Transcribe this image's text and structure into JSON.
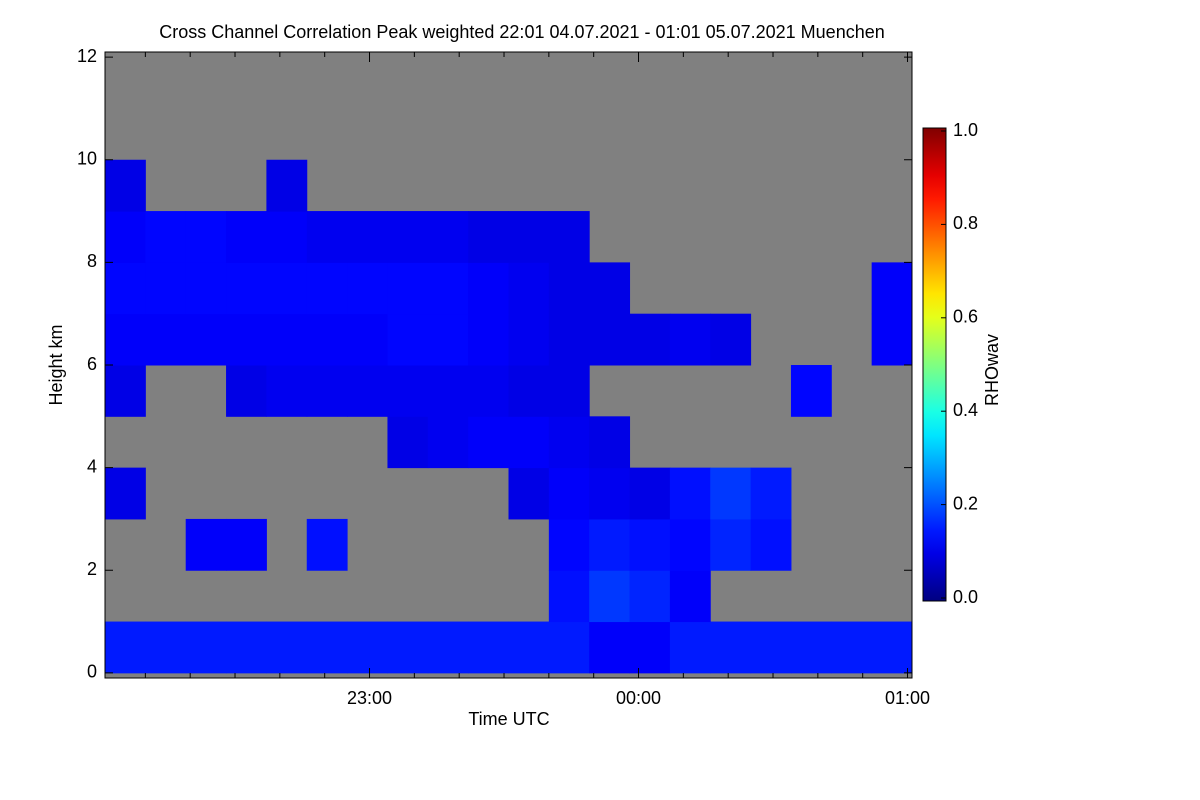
{
  "chart_data": {
    "type": "heatmap",
    "title": "Cross Channel Correlation Peak weighted   22:01 04.07.2021 - 01:01 05.07.2021 Muenchen",
    "xlabel": "Time UTC",
    "ylabel": "Height km",
    "colorbar_label": "RHOwav",
    "colormap": "jet",
    "nodata_color": "#808080",
    "xlim": [
      1,
      181
    ],
    "ylim": [
      -0.1,
      12.1
    ],
    "xticks": [
      {
        "value": 60,
        "label": "23:00"
      },
      {
        "value": 120,
        "label": "00:00"
      },
      {
        "value": 180,
        "label": "01:00"
      }
    ],
    "minor_xticks": [
      10,
      20,
      30,
      40,
      50,
      70,
      80,
      90,
      100,
      110,
      130,
      140,
      150,
      160,
      170
    ],
    "yticks": [
      0,
      2,
      4,
      6,
      8,
      10,
      12
    ],
    "zlim": [
      0,
      1
    ],
    "zticks": [
      {
        "value": 0,
        "label": "0.0"
      },
      {
        "value": 0.2,
        "label": "0.2"
      },
      {
        "value": 0.4,
        "label": "0.4"
      },
      {
        "value": 0.6,
        "label": "0.6"
      },
      {
        "value": 0.8,
        "label": "0.8"
      },
      {
        "value": 1,
        "label": "1.0"
      }
    ],
    "x_edges": [
      1,
      10,
      19,
      28,
      37,
      46,
      55,
      64,
      73,
      82,
      91,
      100,
      109,
      118,
      127,
      136,
      145,
      154,
      163,
      172,
      181
    ],
    "y_edges": [
      0,
      1,
      2,
      3,
      4,
      5,
      6,
      7,
      8,
      9,
      10,
      11,
      12
    ],
    "z": [
      [
        0.15,
        0.15,
        0.15,
        0.15,
        0.15,
        0.15,
        0.15,
        0.15,
        0.15,
        0.15,
        0.15,
        0.15,
        0.12,
        0.12,
        0.15,
        0.15,
        0.15,
        0.15,
        0.15,
        0.15
      ],
      [
        null,
        null,
        null,
        null,
        null,
        null,
        null,
        null,
        null,
        null,
        null,
        0.14,
        0.18,
        0.16,
        0.12,
        null,
        null,
        null,
        null,
        null
      ],
      [
        null,
        null,
        0.12,
        0.12,
        null,
        0.14,
        null,
        null,
        null,
        null,
        null,
        0.13,
        0.15,
        0.14,
        0.13,
        0.16,
        0.14,
        null,
        null,
        null
      ],
      [
        0.1,
        null,
        null,
        null,
        null,
        null,
        null,
        null,
        null,
        null,
        0.1,
        0.12,
        0.11,
        0.1,
        0.14,
        0.18,
        0.15,
        null,
        null,
        null
      ],
      [
        null,
        null,
        null,
        null,
        null,
        null,
        null,
        0.1,
        0.11,
        0.12,
        0.12,
        0.11,
        0.1,
        null,
        null,
        null,
        null,
        null,
        null,
        null
      ],
      [
        0.1,
        null,
        null,
        0.1,
        0.11,
        0.11,
        0.11,
        0.11,
        0.11,
        0.11,
        0.1,
        0.1,
        null,
        null,
        null,
        null,
        null,
        0.13,
        null,
        null
      ],
      [
        0.12,
        0.12,
        0.12,
        0.12,
        0.12,
        0.12,
        0.12,
        0.13,
        0.13,
        0.12,
        0.11,
        0.1,
        0.1,
        0.1,
        0.11,
        0.1,
        null,
        null,
        null,
        0.12
      ],
      [
        0.13,
        0.13,
        0.13,
        0.13,
        0.13,
        0.13,
        0.13,
        0.13,
        0.13,
        0.12,
        0.11,
        0.1,
        0.1,
        null,
        null,
        null,
        null,
        null,
        null,
        0.12
      ],
      [
        0.12,
        0.13,
        0.13,
        0.12,
        0.12,
        0.11,
        0.11,
        0.11,
        0.11,
        0.1,
        0.1,
        0.1,
        null,
        null,
        null,
        null,
        null,
        null,
        null,
        null
      ],
      [
        0.1,
        null,
        null,
        null,
        0.1,
        null,
        null,
        null,
        null,
        null,
        null,
        null,
        null,
        null,
        null,
        null,
        null,
        null,
        null,
        null
      ],
      [
        null,
        null,
        null,
        null,
        null,
        null,
        null,
        null,
        null,
        null,
        null,
        null,
        null,
        null,
        null,
        null,
        null,
        null,
        null,
        null
      ],
      [
        null,
        null,
        null,
        null,
        null,
        null,
        null,
        null,
        null,
        null,
        null,
        null,
        null,
        null,
        null,
        null,
        null,
        null,
        null,
        null
      ]
    ]
  }
}
